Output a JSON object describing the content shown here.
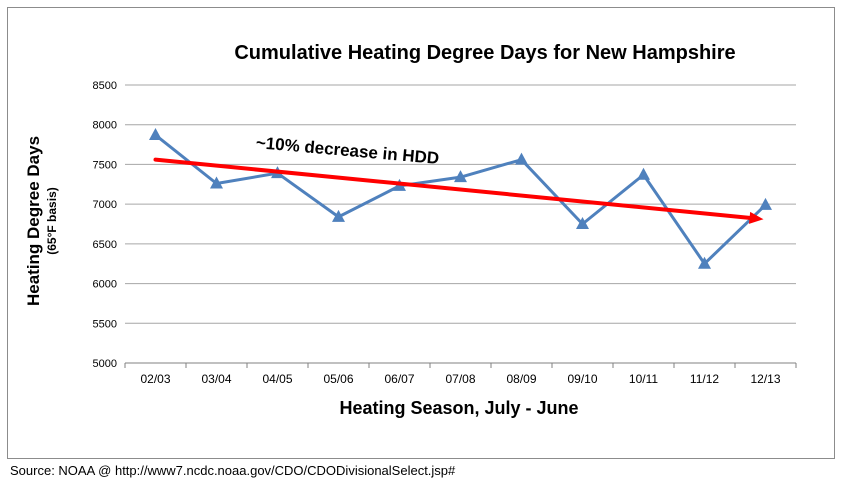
{
  "source": "Source: NOAA @ http://www7.ncdc.noaa.gov/CDO/CDODivisionalSelect.jsp#",
  "colors": {
    "series": "#4f81bd",
    "trend": "#ff0000",
    "grid": "#a6a6a6",
    "text": "#000000"
  },
  "chart_data": {
    "type": "line",
    "title": "Cumulative Heating Degree Days for New Hampshire",
    "xlabel": "Heating Season, July - June",
    "ylabel": "Heating Degree Days",
    "ylabel_sub": "(65°F basis)",
    "ylim": [
      5000,
      8500
    ],
    "yticks": [
      "5000",
      "5500",
      "6000",
      "6500",
      "7000",
      "7500",
      "8000",
      "8500"
    ],
    "grid": true,
    "categories": [
      "02/03",
      "03/04",
      "04/05",
      "05/06",
      "06/07",
      "07/08",
      "08/09",
      "09/10",
      "10/11",
      "11/12",
      "12/13"
    ],
    "series": [
      {
        "name": "HDD",
        "marker": "triangle",
        "values": [
          7870,
          7260,
          7390,
          6840,
          7230,
          7340,
          7560,
          6750,
          7370,
          6250,
          6990
        ]
      }
    ],
    "trendline": {
      "start": 7560,
      "end": 6810,
      "arrow": true
    },
    "annotation": "~10% decrease in HDD"
  }
}
